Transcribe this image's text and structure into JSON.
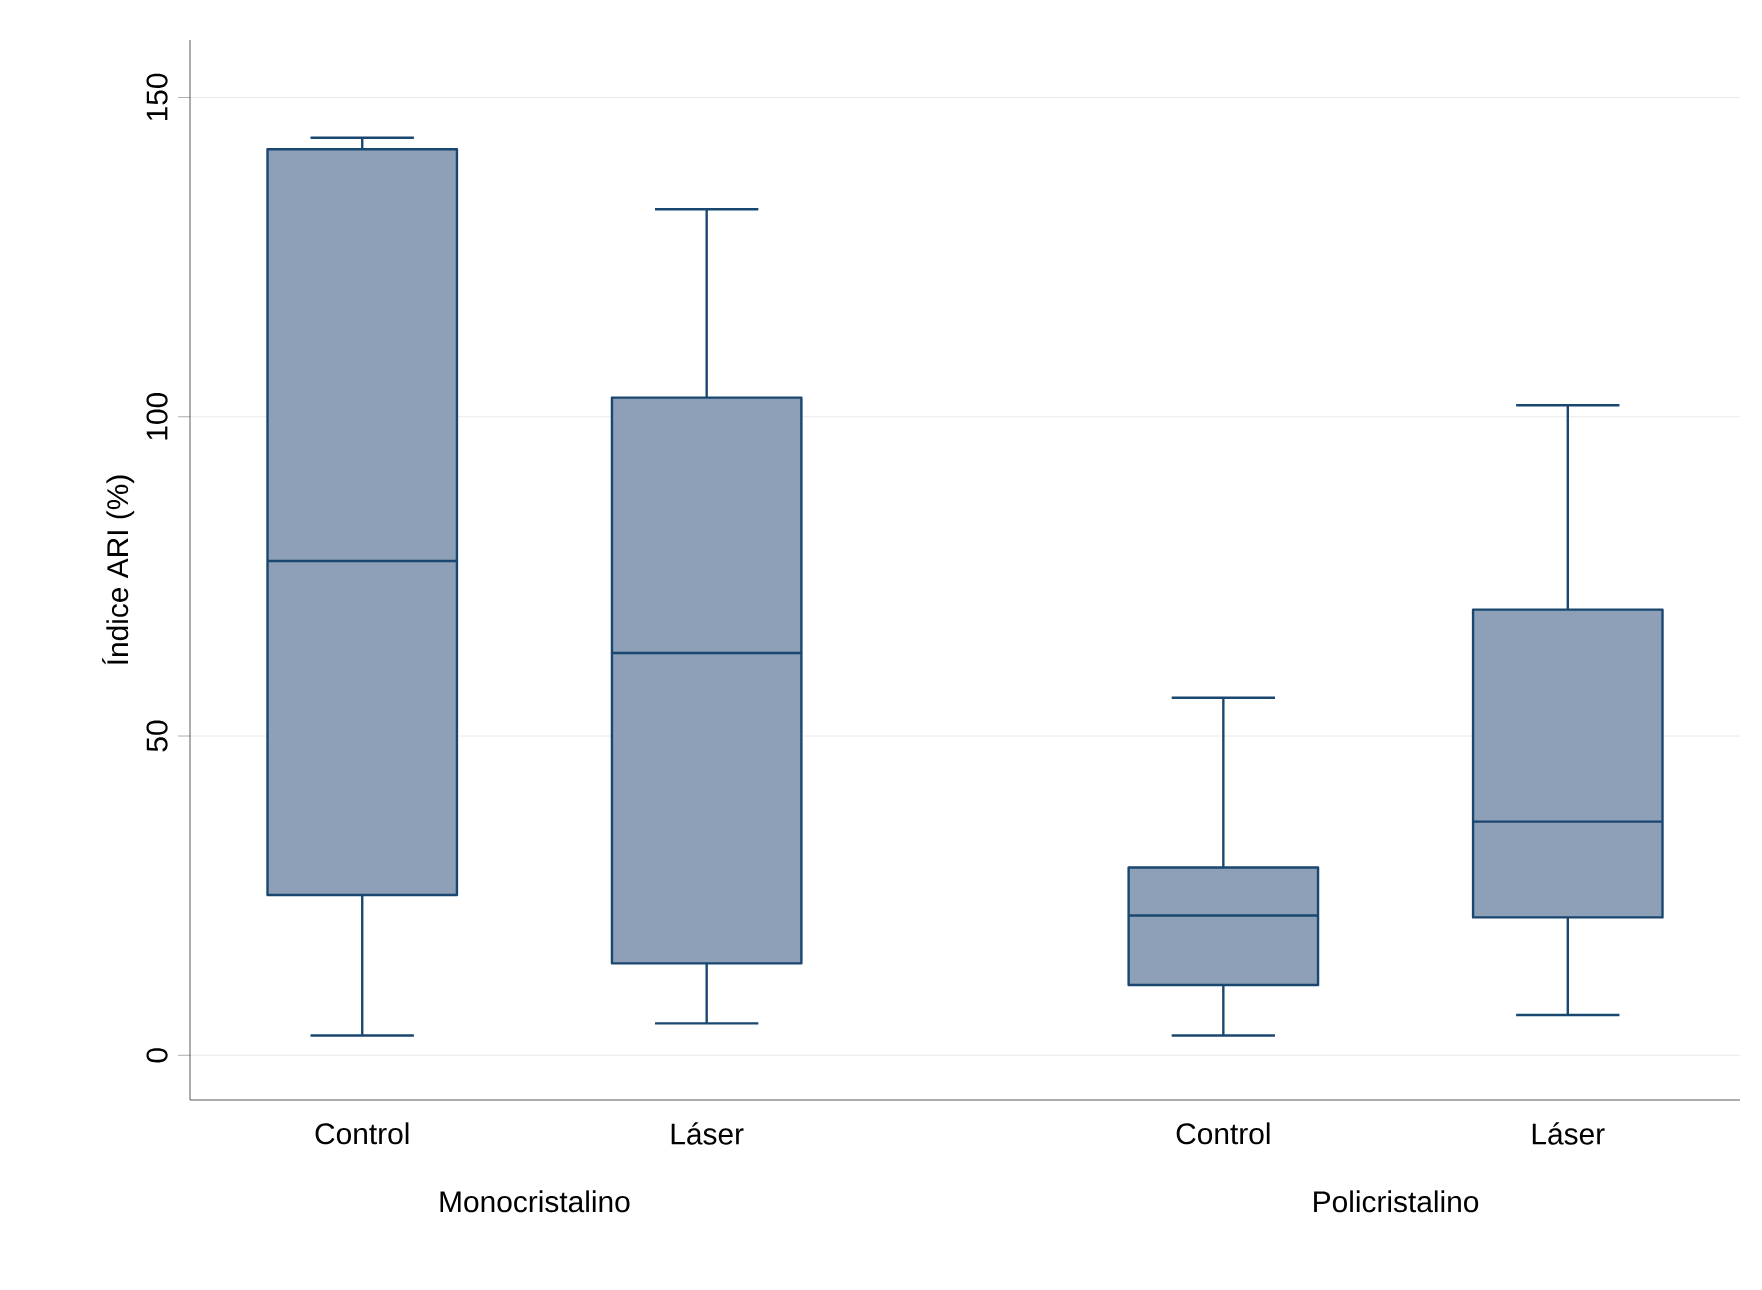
{
  "chart_data": {
    "type": "box",
    "ylabel": "Índice ARI (%)",
    "categories": [
      "Control",
      "Láser",
      "Control",
      "Láser"
    ],
    "annotations": [
      "Monocristalino",
      "Policristalino"
    ],
    "boxes": [
      {
        "low": 3.1,
        "q1": 25.1,
        "median": 77.4,
        "q3": 141.9,
        "high": 143.7
      },
      {
        "low": 5.0,
        "q1": 14.4,
        "median": 63.0,
        "q3": 103.0,
        "high": 132.5
      },
      {
        "low": 3.1,
        "q1": 11.0,
        "median": 21.9,
        "q3": 29.4,
        "high": 56.0
      },
      {
        "low": 6.3,
        "q1": 21.6,
        "median": 36.6,
        "q3": 69.8,
        "high": 101.8
      }
    ],
    "color": "#8ea0b7",
    "ylim": [
      -7,
      159
    ],
    "yticks": [
      0,
      50,
      100,
      150
    ],
    "grid": "y"
  }
}
